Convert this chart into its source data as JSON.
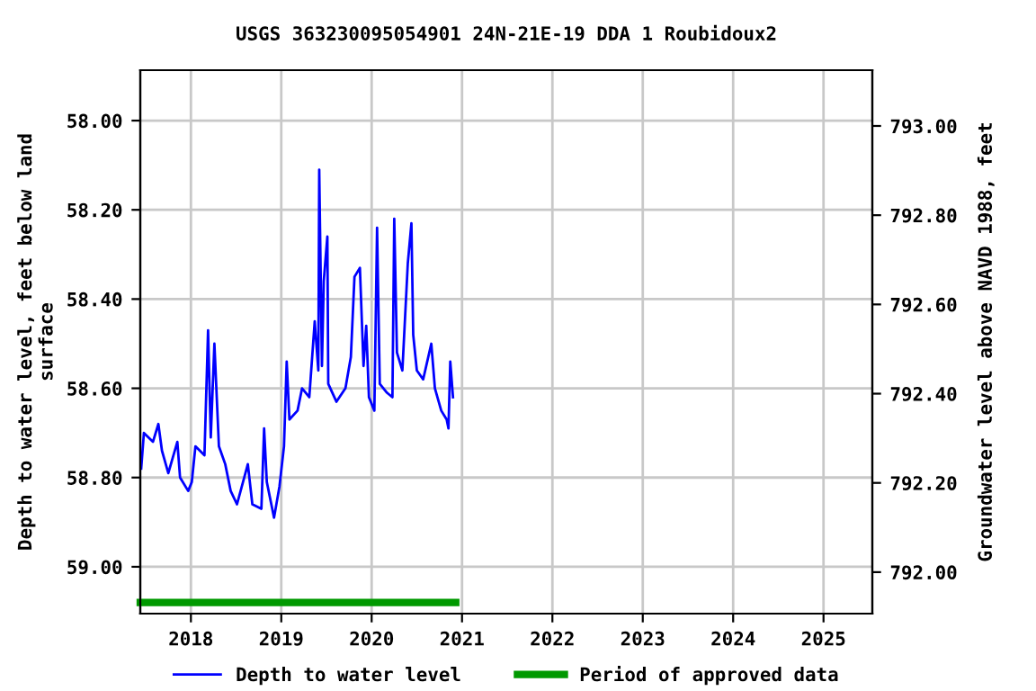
{
  "chart_data": {
    "type": "line",
    "title": "USGS 363230095054901 24N-21E-19 DDA 1 Roubidoux2",
    "ylabel": "Depth to water level, feet below land\nsurface",
    "y2label": "Groundwater level above NAVD 1988, feet",
    "xlim": [
      2017.44,
      2025.54
    ],
    "xticks": [
      2018,
      2019,
      2020,
      2021,
      2022,
      2023,
      2024,
      2025
    ],
    "ylim": [
      59.105,
      57.887
    ],
    "yticks": [
      {
        "value": 58.0,
        "label": "58.00"
      },
      {
        "value": 58.2,
        "label": "58.20"
      },
      {
        "value": 58.4,
        "label": "58.40"
      },
      {
        "value": 58.6,
        "label": "58.60"
      },
      {
        "value": 58.8,
        "label": "58.80"
      },
      {
        "value": 59.0,
        "label": "59.00"
      }
    ],
    "y2lim": [
      791.907,
      793.125
    ],
    "y2ticks": [
      {
        "value": 792.0,
        "label": "792.00"
      },
      {
        "value": 792.2,
        "label": "792.20"
      },
      {
        "value": 792.4,
        "label": "792.40"
      },
      {
        "value": 792.6,
        "label": "792.60"
      },
      {
        "value": 792.8,
        "label": "792.80"
      },
      {
        "value": 793.0,
        "label": "793.00"
      }
    ],
    "grid": true,
    "legend": "bottom",
    "line_style": "solid",
    "marker": "none",
    "series": [
      {
        "name": "Depth to water level",
        "color": "#0000ff",
        "x": [
          2017.45,
          2017.48,
          2017.58,
          2017.64,
          2017.68,
          2017.75,
          2017.85,
          2017.88,
          2017.97,
          2018.01,
          2018.05,
          2018.15,
          2018.19,
          2018.22,
          2018.26,
          2018.31,
          2018.38,
          2018.44,
          2018.51,
          2018.63,
          2018.68,
          2018.78,
          2018.81,
          2018.84,
          2018.92,
          2018.98,
          2019.03,
          2019.06,
          2019.09,
          2019.18,
          2019.23,
          2019.31,
          2019.37,
          2019.41,
          2019.42,
          2019.45,
          2019.47,
          2019.51,
          2019.52,
          2019.61,
          2019.71,
          2019.77,
          2019.81,
          2019.87,
          2019.91,
          2019.94,
          2019.97,
          2020.03,
          2020.06,
          2020.09,
          2020.17,
          2020.23,
          2020.25,
          2020.28,
          2020.34,
          2020.4,
          2020.44,
          2020.46,
          2020.5,
          2020.57,
          2020.66,
          2020.7,
          2020.77,
          2020.83,
          2020.85,
          2020.87,
          2020.9
        ],
        "values": [
          58.78,
          58.7,
          58.72,
          58.68,
          58.74,
          58.79,
          58.72,
          58.8,
          58.83,
          58.81,
          58.73,
          58.75,
          58.47,
          58.71,
          58.5,
          58.73,
          58.77,
          58.83,
          58.86,
          58.77,
          58.86,
          58.87,
          58.69,
          58.81,
          58.89,
          58.82,
          58.73,
          58.54,
          58.67,
          58.65,
          58.6,
          58.62,
          58.45,
          58.56,
          58.11,
          58.55,
          58.36,
          58.26,
          58.59,
          58.63,
          58.6,
          58.53,
          58.35,
          58.33,
          58.55,
          58.46,
          58.62,
          58.65,
          58.24,
          58.59,
          58.61,
          58.62,
          58.22,
          58.52,
          58.56,
          58.32,
          58.23,
          58.48,
          58.56,
          58.58,
          58.5,
          58.6,
          58.65,
          58.67,
          58.69,
          58.54,
          58.62
        ]
      },
      {
        "name": "Period of approved data",
        "color": "#009900",
        "x": [
          2017.44,
          2020.93
        ],
        "values": [
          59.08,
          59.08
        ]
      }
    ]
  }
}
